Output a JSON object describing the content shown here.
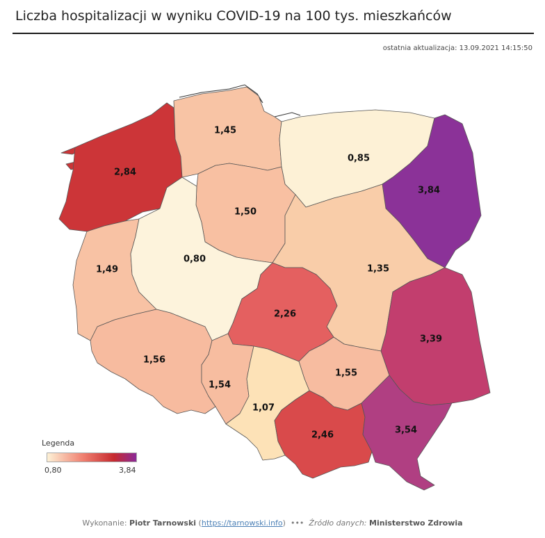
{
  "title": "Liczba hospitalizacji w wyniku COVID-19 na 100 tys. mieszkańców",
  "updated": "ostatnia aktualizacja: 13.09.2021 14:15:50",
  "colors": {
    "min": "#fdf1d6",
    "mid": "#f08070",
    "high": "#c62a2f",
    "max": "#8b2a98"
  },
  "regions": [
    {
      "name": "zachodniopomorskie",
      "value": "2,84",
      "color": "#cc3538"
    },
    {
      "name": "pomorskie",
      "value": "1,45",
      "color": "#f8c4a5"
    },
    {
      "name": "warmińsko-mazurskie",
      "value": "0,85",
      "color": "#fdf1d6"
    },
    {
      "name": "podlaskie",
      "value": "3,84",
      "color": "#8b3298"
    },
    {
      "name": "kujawsko-pomorskie",
      "value": "1,50",
      "color": "#f8c0a2"
    },
    {
      "name": "lubuskie",
      "value": "1,49",
      "color": "#f8c2a4"
    },
    {
      "name": "wielkopolskie",
      "value": "0,80",
      "color": "#fdf3dc"
    },
    {
      "name": "mazowieckie",
      "value": "1,35",
      "color": "#f9cda9"
    },
    {
      "name": "łódzkie",
      "value": "2,26",
      "color": "#e46060"
    },
    {
      "name": "lubelskie",
      "value": "3,39",
      "color": "#c23e6e"
    },
    {
      "name": "dolnośląskie",
      "value": "1,56",
      "color": "#f7bb9f"
    },
    {
      "name": "opolskie",
      "value": "1,54",
      "color": "#f7bda0"
    },
    {
      "name": "świętokrzyskie",
      "value": "1,55",
      "color": "#f7bca0"
    },
    {
      "name": "śląskie",
      "value": "1,07",
      "color": "#fde2b7"
    },
    {
      "name": "małopolskie",
      "value": "2,46",
      "color": "#d94a4b"
    },
    {
      "name": "podkarpackie",
      "value": "3,54",
      "color": "#b03f82"
    }
  ],
  "legend": {
    "title": "Legenda",
    "min": "0,80",
    "max": "3,84"
  },
  "footer": {
    "made_by_label": "Wykonanie:",
    "author": "Piotr Tarnowski",
    "link": "https://tarnowski.info",
    "dots": "•••",
    "source_label": "Źródło danych:",
    "source": "Ministerstwo Zdrowia"
  }
}
